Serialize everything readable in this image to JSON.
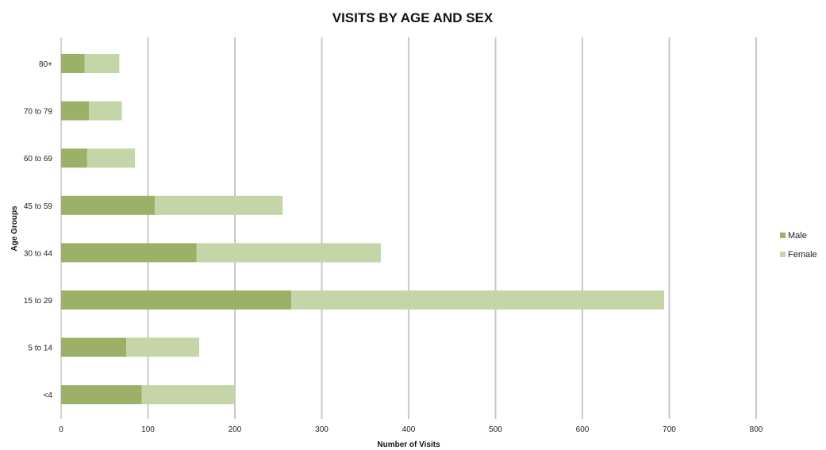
{
  "chart_data": {
    "type": "bar",
    "orientation": "horizontal",
    "stacked": true,
    "title": "VISITS BY AGE AND SEX",
    "xlabel": "Number of Visits",
    "ylabel": "Age Groups",
    "xlim": [
      0,
      800
    ],
    "xticks": [
      0,
      100,
      200,
      300,
      400,
      500,
      600,
      700,
      800
    ],
    "grid": true,
    "legend_position": "right",
    "categories": [
      "<4",
      "5 to 14",
      "15 to 29",
      "30 to 44",
      "45 to 59",
      "60 to 69",
      "70 to 79",
      "80+"
    ],
    "series": [
      {
        "name": "Male",
        "color": "#9bb168",
        "values": [
          93,
          75,
          265,
          156,
          108,
          30,
          32,
          27
        ]
      },
      {
        "name": "Female",
        "color": "#c4d5a7",
        "values": [
          107,
          84,
          429,
          212,
          147,
          55,
          38,
          40
        ]
      }
    ]
  }
}
